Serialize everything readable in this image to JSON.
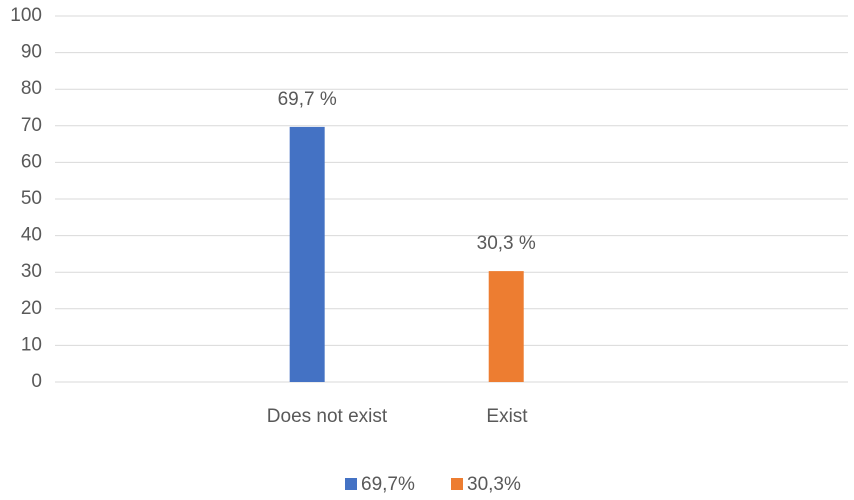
{
  "chart_data": {
    "type": "bar",
    "categories": [
      "Does not exist",
      "Exist"
    ],
    "series": [
      {
        "name": "69,7%",
        "color": "#4472c4",
        "values": [
          69.7,
          null
        ],
        "value_labels": [
          "69,7 %",
          null
        ]
      },
      {
        "name": "30,3%",
        "color": "#ed7d31",
        "values": [
          null,
          30.3
        ],
        "value_labels": [
          null,
          "30,3 %"
        ]
      }
    ],
    "ylim": [
      0,
      100
    ],
    "yticks": [
      0,
      10,
      20,
      30,
      40,
      50,
      60,
      70,
      80,
      90,
      100
    ],
    "grid": true,
    "legend": "bottom"
  }
}
